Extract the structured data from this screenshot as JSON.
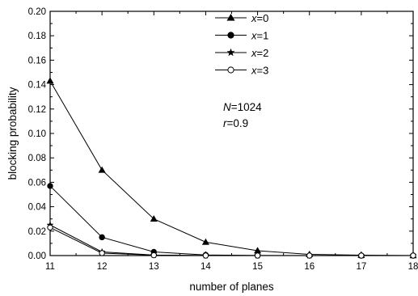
{
  "chart_data": {
    "type": "line",
    "title": "",
    "xlabel": "number of planes",
    "ylabel": "blocking probability",
    "xlim": [
      11,
      18
    ],
    "ylim": [
      0,
      0.2
    ],
    "x_ticks": [
      "11",
      "12",
      "13",
      "14",
      "15",
      "16",
      "17",
      "18"
    ],
    "y_ticks": [
      "0.00",
      "0.02",
      "0.04",
      "0.06",
      "0.08",
      "0.10",
      "0.12",
      "0.14",
      "0.16",
      "0.18",
      "0.20"
    ],
    "grid": false,
    "legend_position": "top-right",
    "x": [
      11,
      12,
      13,
      14,
      15,
      16,
      17,
      18
    ],
    "series": [
      {
        "name": "x=0",
        "var": "x",
        "val": "=0",
        "marker": "triangle",
        "values": [
          0.143,
          0.07,
          0.03,
          0.011,
          0.004,
          0.001,
          0.0003,
          0.0
        ]
      },
      {
        "name": "x=1",
        "var": "x",
        "val": "=1",
        "marker": "filled-circle",
        "values": [
          0.057,
          0.015,
          0.003,
          0.0005,
          0.0001,
          0.0,
          0.0,
          0.0
        ]
      },
      {
        "name": "x=2",
        "var": "x",
        "val": "=2",
        "marker": "star",
        "values": [
          0.025,
          0.003,
          0.0004,
          0.0,
          0.0,
          0.0,
          0.0,
          0.0
        ]
      },
      {
        "name": "x=3",
        "var": "x",
        "val": "=3",
        "marker": "open-circle",
        "values": [
          0.023,
          0.002,
          0.0003,
          0.0,
          0.0,
          0.0,
          0.0,
          0.0
        ]
      }
    ],
    "annotations": [
      {
        "var": "N",
        "val": "=1024"
      },
      {
        "var": "r",
        "val": "=0.9"
      }
    ]
  }
}
